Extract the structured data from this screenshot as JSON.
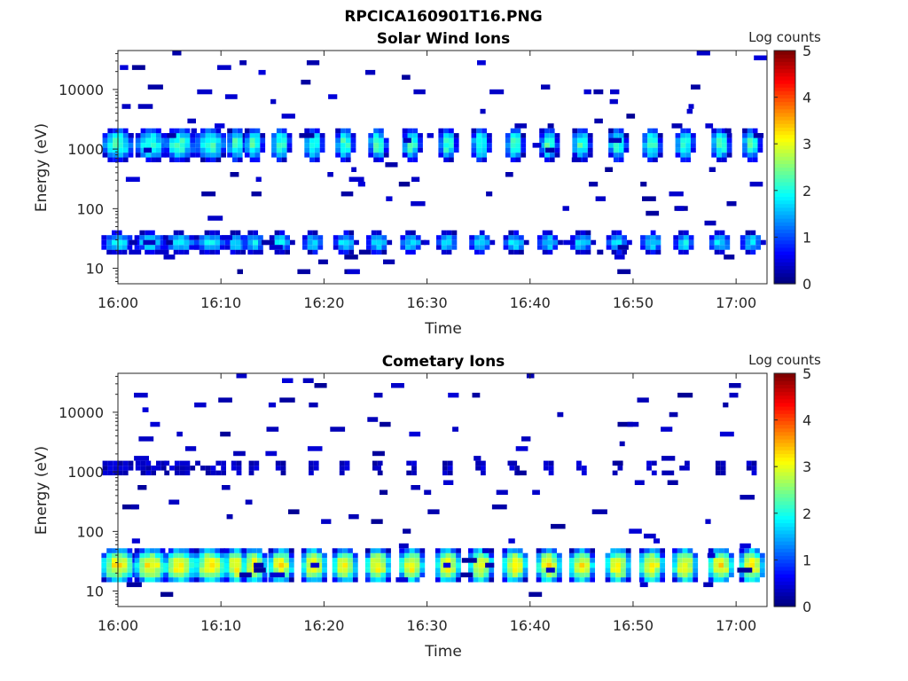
{
  "figure": {
    "main_title": "RPCICA160901T16.PNG"
  },
  "colorbar": {
    "label": "Log counts",
    "ticks": [
      "0",
      "1",
      "2",
      "3",
      "4",
      "5"
    ],
    "range": [
      0,
      5
    ],
    "colormap": "jet"
  },
  "chart_data": [
    {
      "type": "heatmap",
      "title": "Solar Wind Ions",
      "xlabel": "Time",
      "ylabel": "Energy (eV)",
      "y_scale": "log",
      "ylim": [
        5.5,
        45000
      ],
      "xlim": [
        "16:00",
        "17:03"
      ],
      "x_ticks": [
        "16:00",
        "16:10",
        "16:20",
        "16:30",
        "16:40",
        "16:50",
        "17:00"
      ],
      "y_ticks": [
        "10",
        "100",
        "1000",
        "10000"
      ],
      "grid": false,
      "colorbar_label": "Log counts",
      "beam_centers_min": [
        0,
        3.2,
        6,
        9,
        11.5,
        13.2,
        15.8,
        19,
        22,
        25.2,
        28.5,
        32,
        35.2,
        38.5,
        41.8,
        45,
        48.5,
        51.8,
        55,
        58.5,
        61.5
      ],
      "main_beam_energy_eV": [
        650,
        2200
      ],
      "main_beam_peak_log_counts": 2.2,
      "low_band_energy_eV": [
        18,
        40
      ],
      "low_band_peak_log_counts": 1.8
    },
    {
      "type": "heatmap",
      "title": "Cometary Ions",
      "xlabel": "Time",
      "ylabel": "Energy (eV)",
      "y_scale": "log",
      "ylim": [
        5.5,
        45000
      ],
      "xlim": [
        "16:00",
        "17:03"
      ],
      "x_ticks": [
        "16:00",
        "16:10",
        "16:20",
        "16:30",
        "16:40",
        "16:50",
        "17:00"
      ],
      "y_ticks": [
        "10",
        "100",
        "1000",
        "10000"
      ],
      "grid": false,
      "colorbar_label": "Log counts",
      "beam_centers_min": [
        0,
        3.2,
        6,
        9,
        11.5,
        13.2,
        15.8,
        19,
        22,
        25.2,
        28.5,
        32,
        35.2,
        38.5,
        41.8,
        45,
        48.5,
        51.8,
        55,
        58.5,
        61.5
      ],
      "main_band_energy_eV": [
        14,
        50
      ],
      "main_band_peak_log_counts": 3.2,
      "upper_band_energy_eV": [
        900,
        1500
      ],
      "upper_band_peak_log_counts": 0.3
    }
  ]
}
